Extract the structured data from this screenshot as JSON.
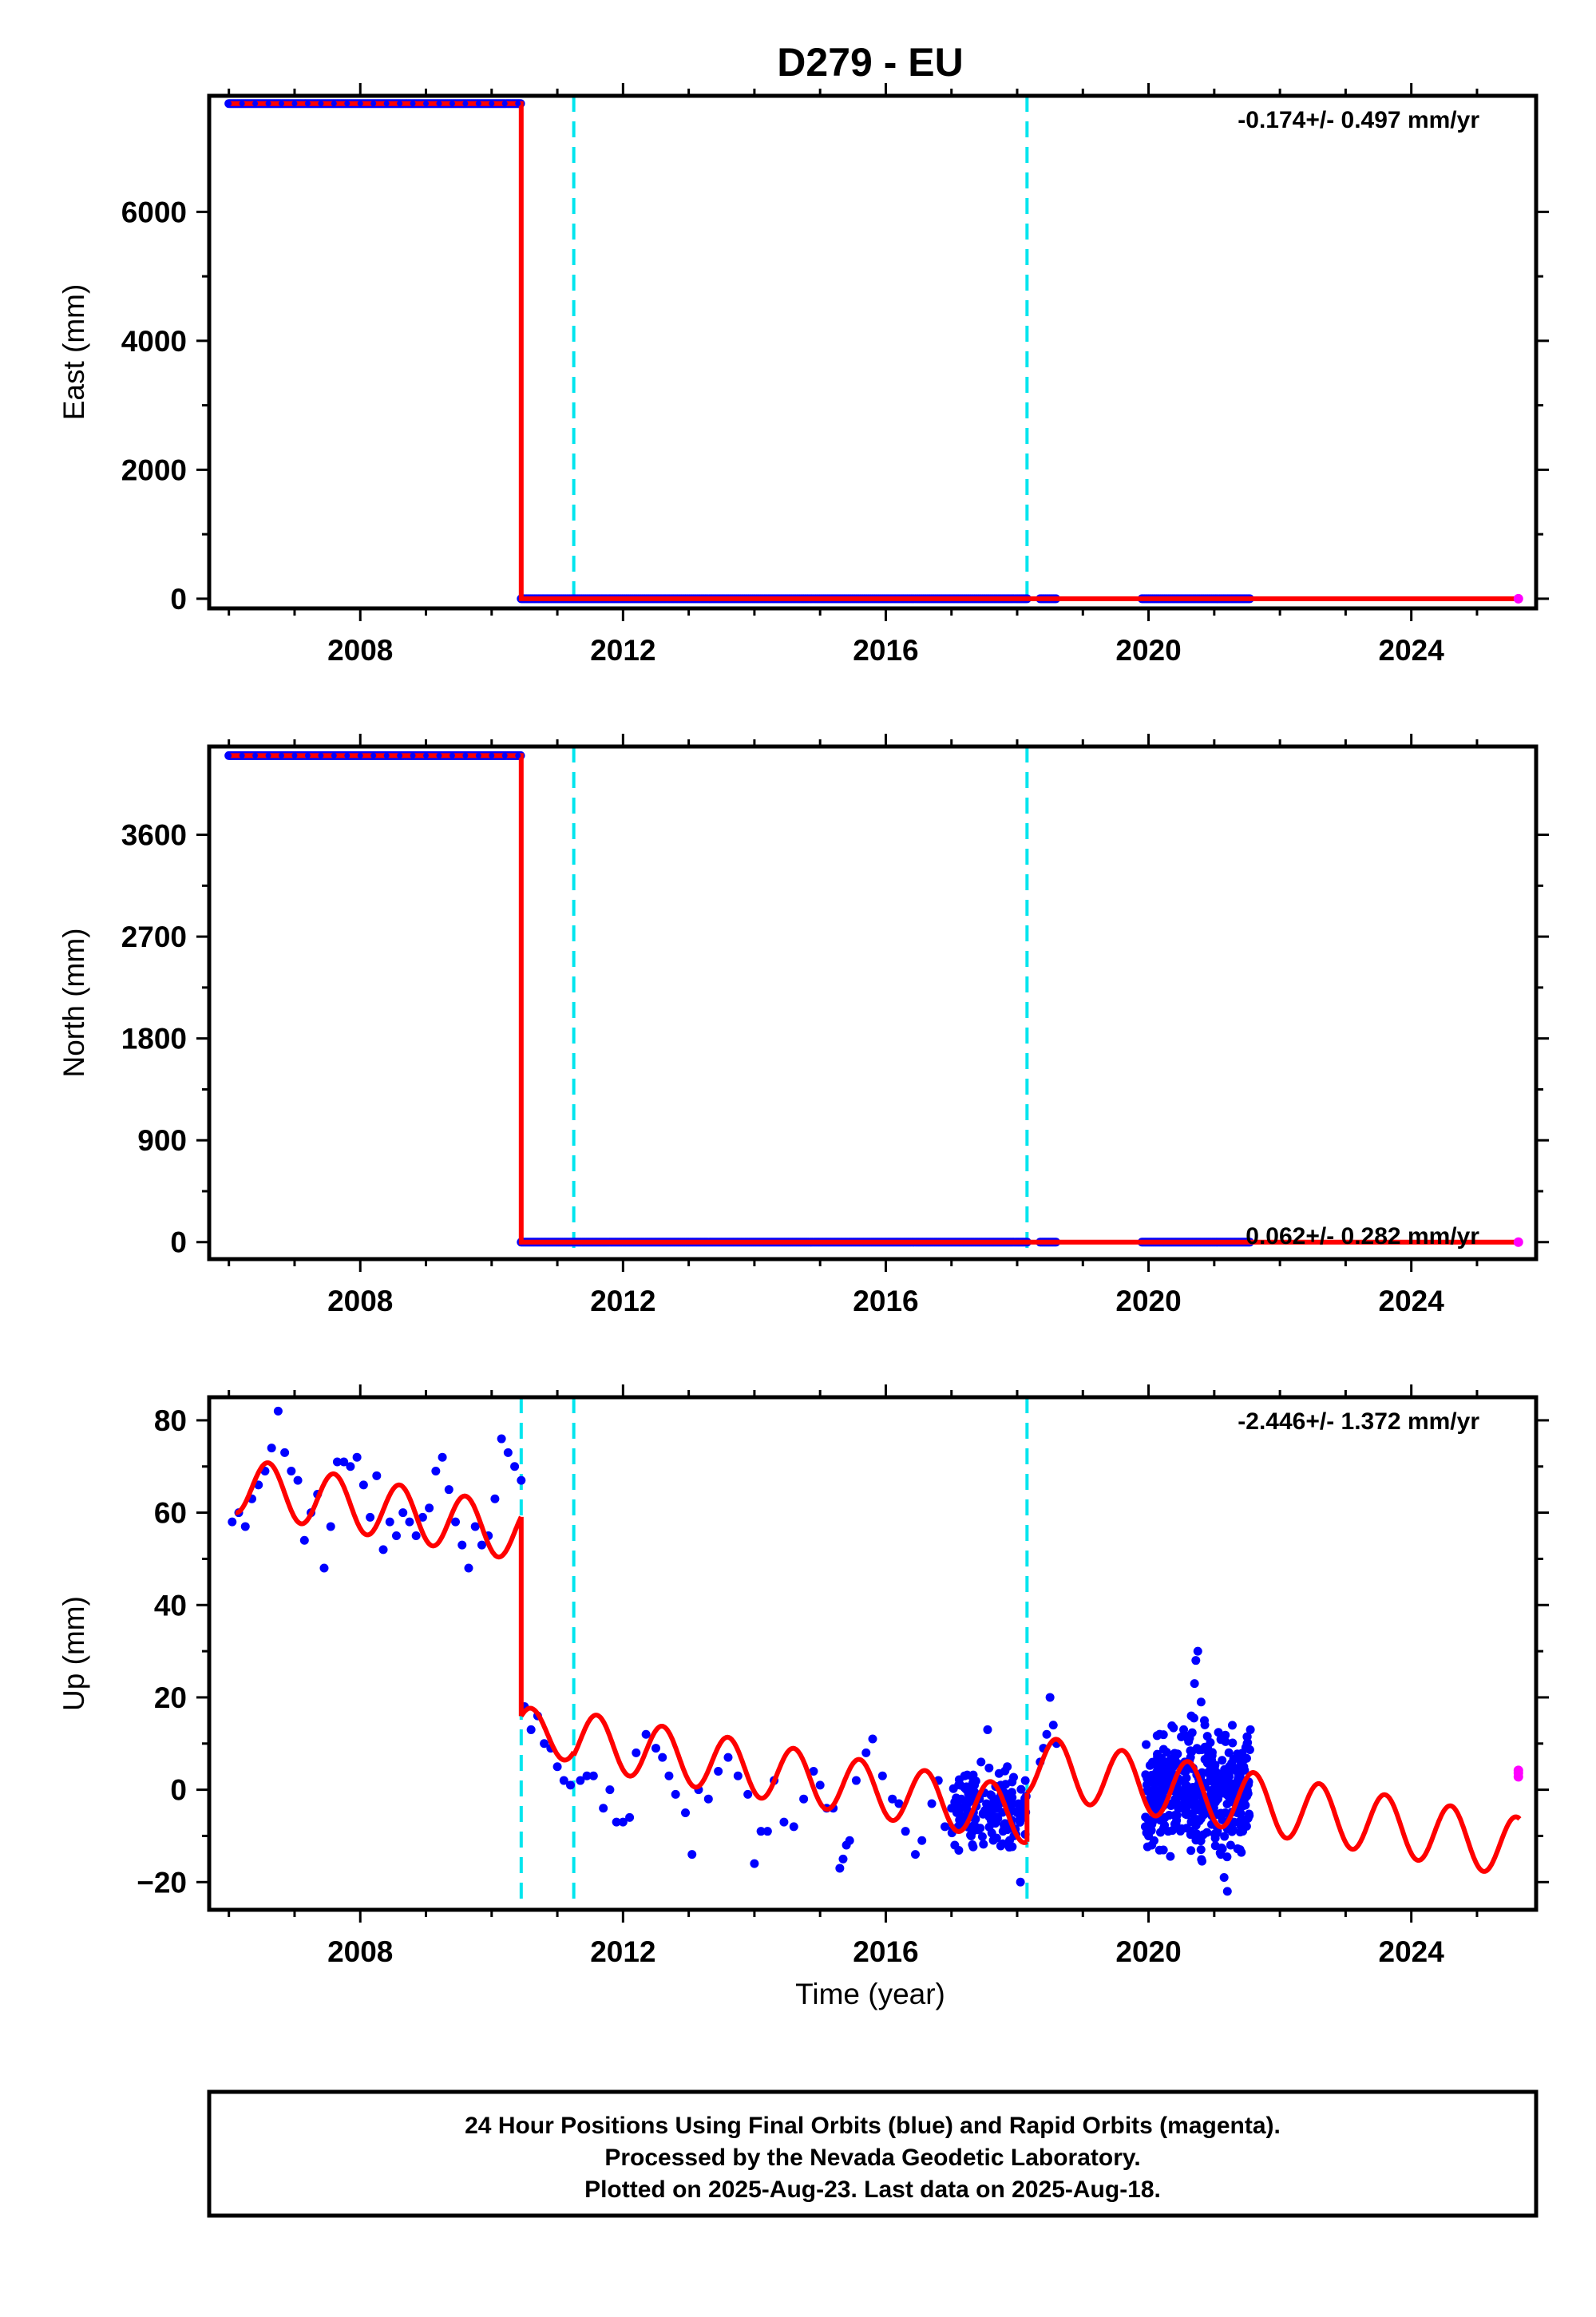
{
  "title": "D279 - EU",
  "xlabel": "Time (year)",
  "colors": {
    "final_orbits": "#0000ff",
    "rapid_orbits": "#ff00ff",
    "model": "#ff0000",
    "offsets": "#00e5ee",
    "frame": "#000000"
  },
  "footer": {
    "line1": "24 Hour Positions Using Final Orbits (blue) and Rapid Orbits (magenta).",
    "line2": "Processed by the Nevada Geodetic Laboratory.",
    "line3": "Plotted on 2025-Aug-23. Last data on 2025-Aug-18."
  },
  "chart_data": [
    {
      "type": "scatter",
      "ylabel": "East (mm)",
      "xlim": [
        2005.7,
        2025.9
      ],
      "ylim": [
        -150,
        7800
      ],
      "xticks": [
        "2008",
        "2012",
        "2016",
        "2020",
        "2024"
      ],
      "yticks": [
        "0",
        "2000",
        "4000",
        "6000"
      ],
      "rate_label": "-0.174+/- 0.497 mm/yr",
      "offset_lines": [
        2011.25,
        2018.15
      ],
      "step": {
        "time": 2010.45,
        "before": 7680,
        "after": 0
      },
      "data_segments": [
        [
          2006.0,
          2010.45
        ],
        [
          2010.45,
          2018.15
        ],
        [
          2018.35,
          2018.6
        ],
        [
          2019.9,
          2021.55
        ]
      ],
      "rapid_last": {
        "x": 2025.63,
        "y": 0
      },
      "model_end": 2025.65
    },
    {
      "type": "scatter",
      "ylabel": "North (mm)",
      "xlim": [
        2005.7,
        2025.9
      ],
      "ylim": [
        -150,
        4380
      ],
      "xticks": [
        "2008",
        "2012",
        "2016",
        "2020",
        "2024"
      ],
      "yticks": [
        "0",
        "900",
        "1800",
        "2700",
        "3600"
      ],
      "rate_label": "0.062+/- 0.282 mm/yr",
      "offset_lines": [
        2011.25,
        2018.15
      ],
      "step": {
        "time": 2010.45,
        "before": 4300,
        "after": 0
      },
      "data_segments": [
        [
          2006.0,
          2010.45
        ],
        [
          2010.45,
          2018.15
        ],
        [
          2018.35,
          2018.6
        ],
        [
          2019.9,
          2021.55
        ]
      ],
      "rapid_last": {
        "x": 2025.63,
        "y": 0
      },
      "model_end": 2025.65
    },
    {
      "type": "scatter",
      "ylabel": "Up (mm)",
      "xlim": [
        2005.7,
        2025.9
      ],
      "ylim": [
        -26,
        85
      ],
      "xticks": [
        "2008",
        "2012",
        "2016",
        "2020",
        "2024"
      ],
      "yticks": [
        "−20",
        "0",
        "20",
        "40",
        "60",
        "80"
      ],
      "ytick_values": [
        -20,
        0,
        20,
        40,
        60,
        80
      ],
      "rate_label": "-2.446+/- 1.372 mm/yr",
      "offset_lines": [
        2010.45,
        2011.25,
        2018.15
      ],
      "model": {
        "segments": [
          {
            "start": 2006.1,
            "end": 2010.45,
            "a": 66,
            "b": -2.4,
            "t0": 2006.1,
            "amp": 6
          },
          {
            "start": 2010.45,
            "end": 2011.25,
            "a": 13,
            "b": -2.4,
            "t0": 2010.45,
            "amp": 5
          },
          {
            "start": 2011.25,
            "end": 2018.15,
            "a": 11,
            "b": -2.4,
            "t0": 2011.25,
            "amp": 6
          },
          {
            "start": 2018.15,
            "end": 2025.65,
            "a": 5.5,
            "b": -2.4,
            "t0": 2018.15,
            "amp": 6.5
          }
        ]
      },
      "final_points": [
        [
          2006.05,
          58
        ],
        [
          2006.15,
          60
        ],
        [
          2006.25,
          57
        ],
        [
          2006.35,
          63
        ],
        [
          2006.45,
          66
        ],
        [
          2006.55,
          69
        ],
        [
          2006.65,
          74
        ],
        [
          2006.75,
          82
        ],
        [
          2006.85,
          73
        ],
        [
          2006.95,
          69
        ],
        [
          2007.05,
          67
        ],
        [
          2007.15,
          54
        ],
        [
          2007.25,
          60
        ],
        [
          2007.35,
          64
        ],
        [
          2007.45,
          48
        ],
        [
          2007.55,
          57
        ],
        [
          2007.65,
          71
        ],
        [
          2007.75,
          71
        ],
        [
          2007.85,
          70
        ],
        [
          2007.95,
          72
        ],
        [
          2008.05,
          66
        ],
        [
          2008.15,
          59
        ],
        [
          2008.25,
          68
        ],
        [
          2008.35,
          52
        ],
        [
          2008.45,
          58
        ],
        [
          2008.55,
          55
        ],
        [
          2008.65,
          60
        ],
        [
          2008.75,
          58
        ],
        [
          2008.85,
          55
        ],
        [
          2008.95,
          59
        ],
        [
          2009.05,
          61
        ],
        [
          2009.15,
          69
        ],
        [
          2009.25,
          72
        ],
        [
          2009.35,
          65
        ],
        [
          2009.45,
          58
        ],
        [
          2009.55,
          53
        ],
        [
          2009.65,
          48
        ],
        [
          2009.75,
          57
        ],
        [
          2009.85,
          53
        ],
        [
          2009.95,
          55
        ],
        [
          2010.05,
          63
        ],
        [
          2010.15,
          76
        ],
        [
          2010.25,
          73
        ],
        [
          2010.35,
          70
        ],
        [
          2010.45,
          67
        ],
        [
          2010.5,
          18
        ],
        [
          2010.6,
          13
        ],
        [
          2010.7,
          16
        ],
        [
          2010.8,
          10
        ],
        [
          2010.9,
          9
        ],
        [
          2011.0,
          5
        ],
        [
          2011.1,
          2
        ],
        [
          2011.2,
          1
        ],
        [
          2011.35,
          2
        ],
        [
          2011.45,
          3
        ],
        [
          2011.55,
          3
        ],
        [
          2011.7,
          -4
        ],
        [
          2011.8,
          0
        ],
        [
          2011.9,
          -7
        ],
        [
          2012.0,
          -7
        ],
        [
          2012.1,
          -6
        ],
        [
          2012.2,
          8
        ],
        [
          2012.35,
          12
        ],
        [
          2012.5,
          9
        ],
        [
          2012.6,
          7
        ],
        [
          2012.7,
          3
        ],
        [
          2012.8,
          -1
        ],
        [
          2012.95,
          -5
        ],
        [
          2013.05,
          -14
        ],
        [
          2013.15,
          0
        ],
        [
          2013.3,
          -2
        ],
        [
          2013.45,
          4
        ],
        [
          2013.6,
          7
        ],
        [
          2013.75,
          3
        ],
        [
          2013.9,
          -1
        ],
        [
          2014.0,
          -16
        ],
        [
          2014.1,
          -9
        ],
        [
          2014.2,
          -9
        ],
        [
          2014.3,
          2
        ],
        [
          2014.45,
          -7
        ],
        [
          2014.6,
          -8
        ],
        [
          2014.75,
          -2
        ],
        [
          2014.9,
          4
        ],
        [
          2015.0,
          1
        ],
        [
          2015.1,
          -4
        ],
        [
          2015.2,
          -4
        ],
        [
          2015.3,
          -17
        ],
        [
          2015.35,
          -15
        ],
        [
          2015.4,
          -12
        ],
        [
          2015.45,
          -11
        ],
        [
          2015.55,
          2
        ],
        [
          2015.7,
          8
        ],
        [
          2015.8,
          11
        ],
        [
          2015.95,
          3
        ],
        [
          2016.1,
          -2
        ],
        [
          2016.2,
          -3
        ],
        [
          2016.3,
          -9
        ],
        [
          2016.45,
          -14
        ],
        [
          2016.55,
          -11
        ],
        [
          2016.7,
          -3
        ],
        [
          2016.8,
          2
        ],
        [
          2016.9,
          -8
        ],
        [
          2017.0,
          -4
        ],
        [
          2017.05,
          -12
        ],
        [
          2017.1,
          -8
        ],
        [
          2017.15,
          -2
        ],
        [
          2017.2,
          3
        ],
        [
          2017.25,
          -5
        ],
        [
          2017.3,
          -10
        ],
        [
          2017.35,
          1
        ],
        [
          2017.45,
          6
        ],
        [
          2017.55,
          13
        ],
        [
          2017.6,
          -6
        ],
        [
          2017.65,
          -2
        ],
        [
          2017.75,
          1
        ],
        [
          2017.85,
          5
        ],
        [
          2017.95,
          -10
        ],
        [
          2018.0,
          -5
        ],
        [
          2018.05,
          -20
        ],
        [
          2018.1,
          -3
        ],
        [
          2018.35,
          6
        ],
        [
          2018.4,
          9
        ],
        [
          2018.45,
          12
        ],
        [
          2018.5,
          20
        ],
        [
          2018.55,
          14
        ],
        [
          2018.6,
          10
        ],
        [
          2019.95,
          -8
        ],
        [
          2020.0,
          -10
        ],
        [
          2020.05,
          -12
        ],
        [
          2020.1,
          -5
        ],
        [
          2020.15,
          -2
        ],
        [
          2020.2,
          0
        ],
        [
          2020.25,
          -6
        ],
        [
          2020.3,
          -9
        ],
        [
          2020.4,
          -3
        ],
        [
          2020.5,
          2
        ],
        [
          2020.55,
          6
        ],
        [
          2020.6,
          11
        ],
        [
          2020.65,
          16
        ],
        [
          2020.7,
          23
        ],
        [
          2020.72,
          28
        ],
        [
          2020.75,
          30
        ],
        [
          2020.8,
          19
        ],
        [
          2020.85,
          15
        ],
        [
          2020.9,
          9
        ],
        [
          2020.95,
          3
        ],
        [
          2021.0,
          -3
        ],
        [
          2021.05,
          -9
        ],
        [
          2021.1,
          -14
        ],
        [
          2021.15,
          -19
        ],
        [
          2021.2,
          -22
        ],
        [
          2021.25,
          -12
        ],
        [
          2021.3,
          -7
        ],
        [
          2021.35,
          -5
        ],
        [
          2021.4,
          0
        ],
        [
          2021.45,
          5
        ],
        [
          2021.5,
          10
        ],
        [
          2021.55,
          13
        ]
      ],
      "clusters": [
        {
          "start": 2017.0,
          "end": 2018.15,
          "count": 150,
          "min": -16,
          "max": 7
        },
        {
          "start": 2019.95,
          "end": 2021.55,
          "count": 420,
          "min": -18,
          "max": 18
        }
      ],
      "rapid_points": [
        [
          2025.63,
          2.8
        ],
        [
          2025.63,
          3.6
        ],
        [
          2025.63,
          4.2
        ]
      ]
    }
  ]
}
